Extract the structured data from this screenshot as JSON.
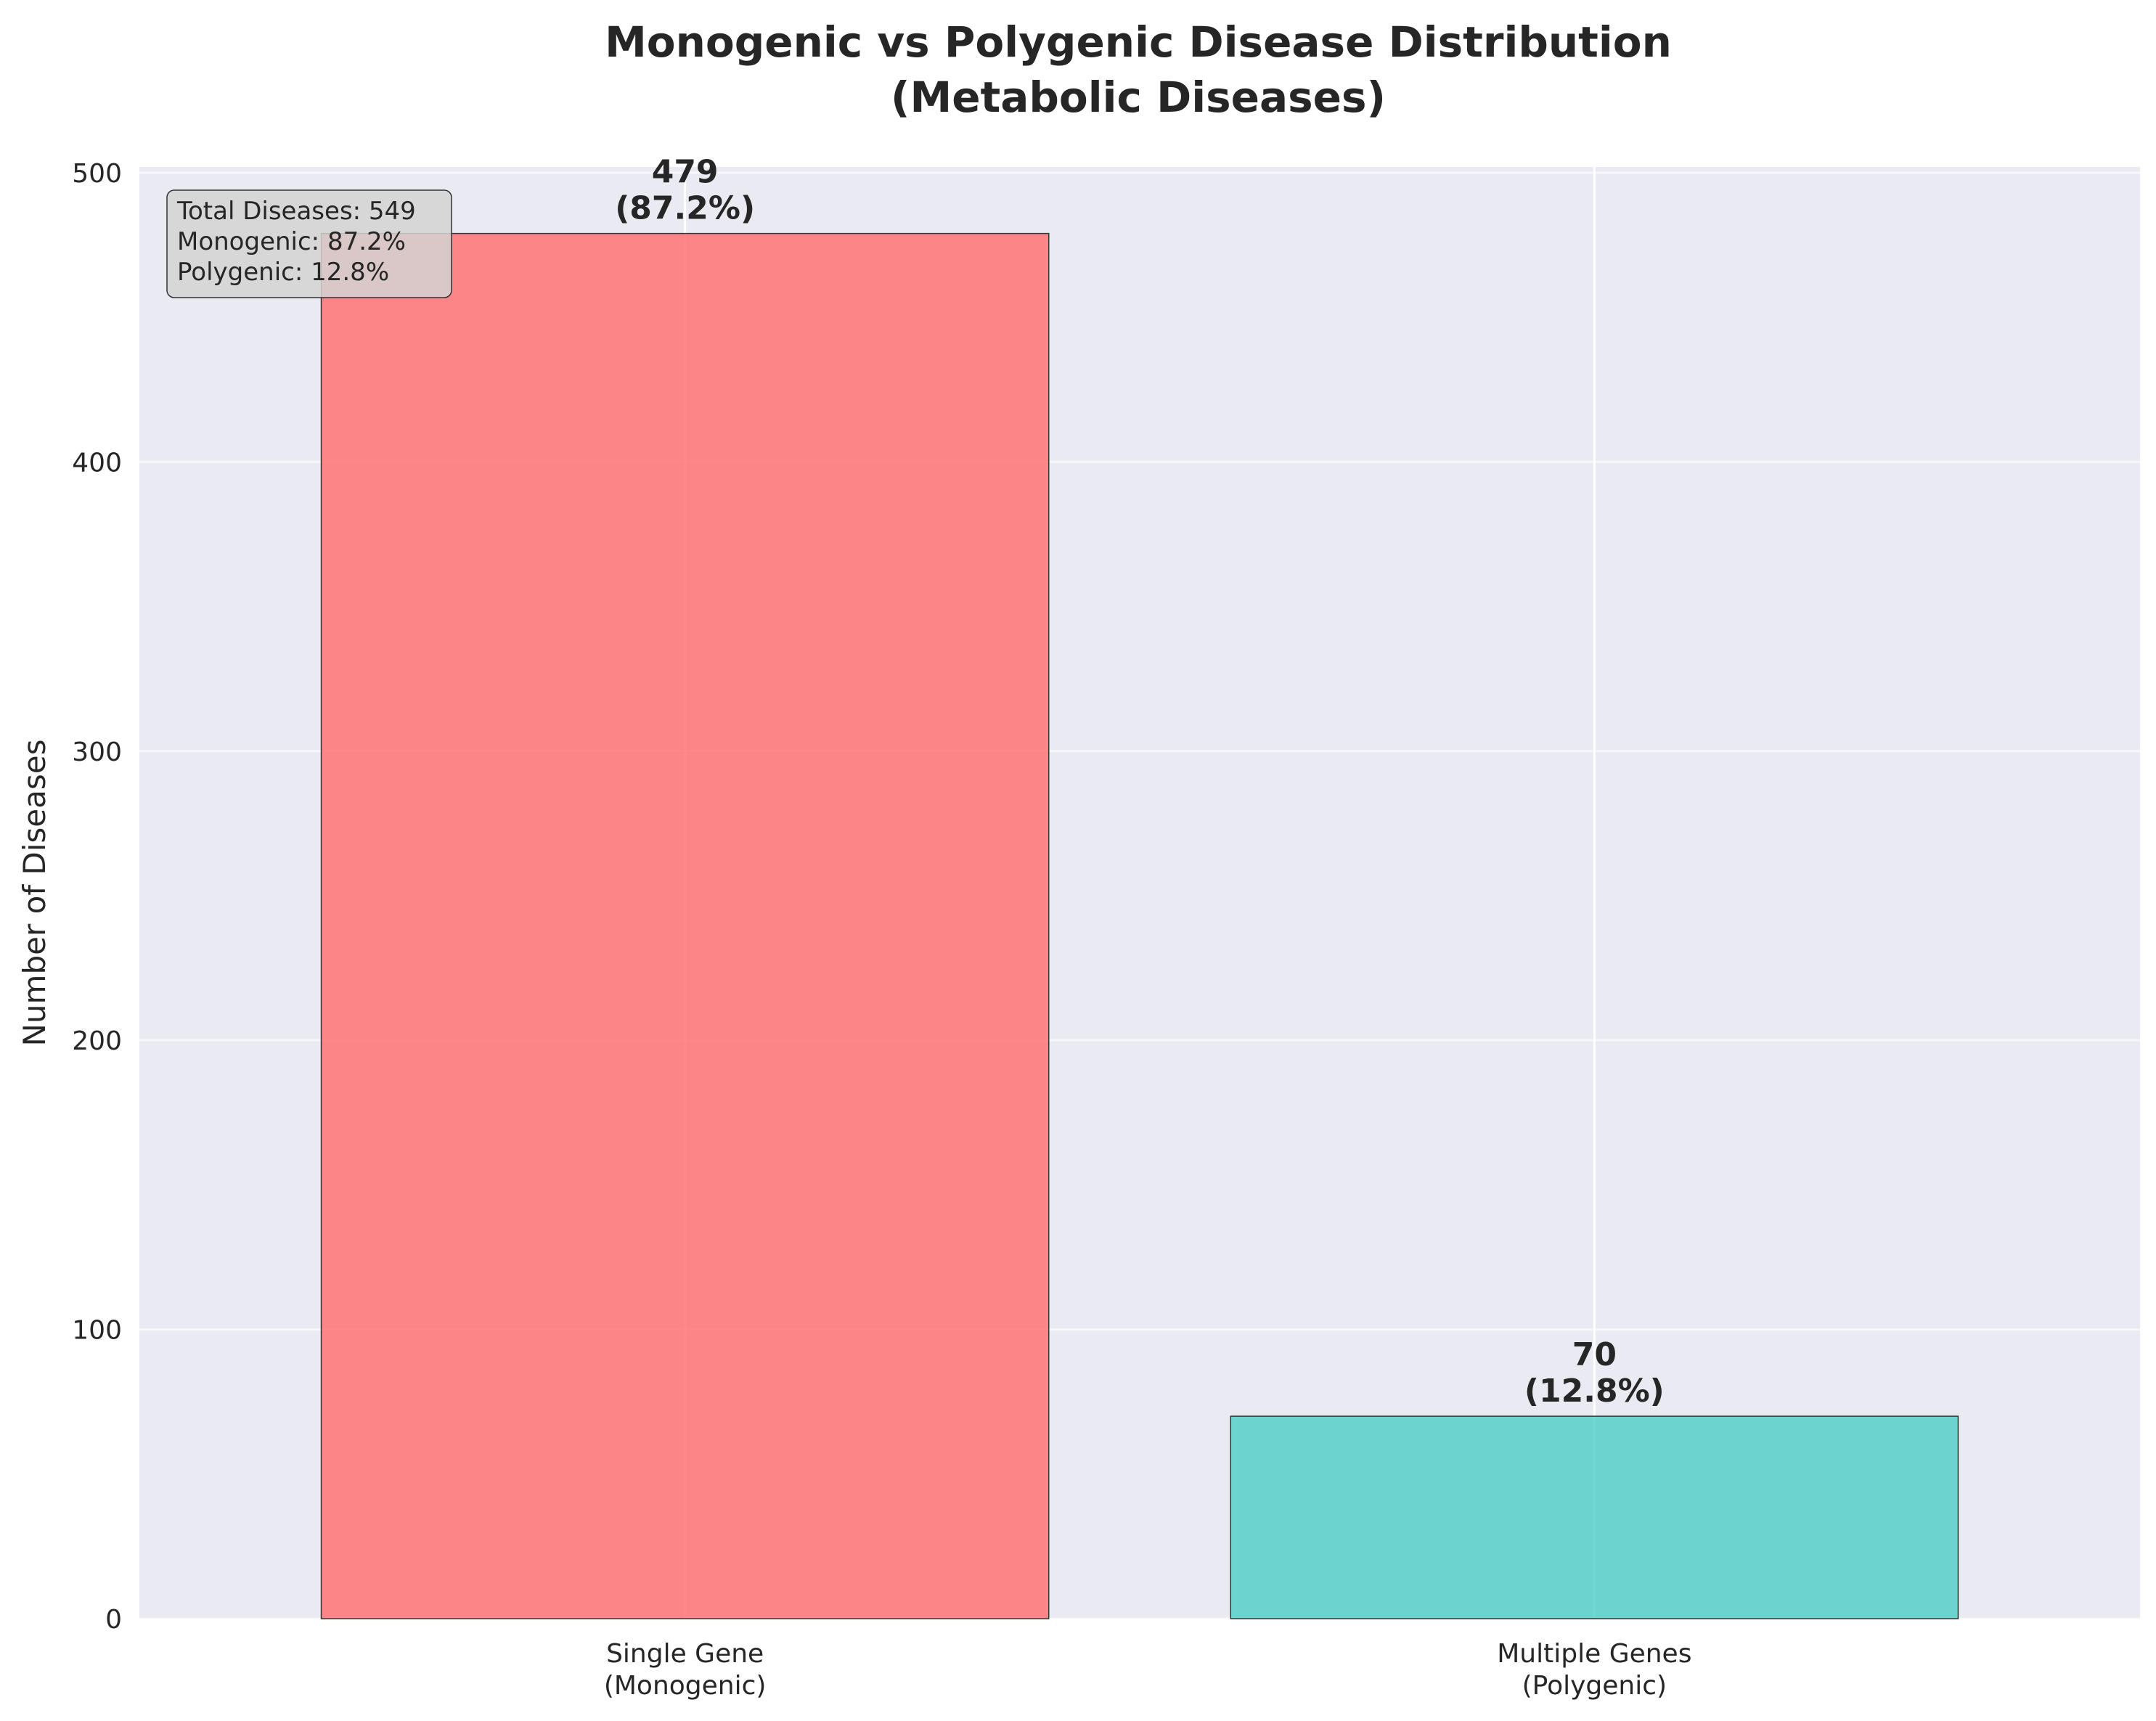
{
  "chart_data": {
    "type": "bar",
    "title": "Monogenic vs Polygenic Disease Distribution\n(Metabolic Diseases)",
    "xlabel": "",
    "ylabel": "Number of Diseases",
    "categories": [
      "Single Gene\n(Monogenic)",
      "Multiple Genes\n(Polygenic)"
    ],
    "values": [
      479,
      70
    ],
    "data_labels": [
      "479\n(87.2%)",
      "70\n(12.8%)"
    ],
    "colors": [
      "#FF6B6B",
      "#4ECDC4"
    ],
    "bar_opacity": 0.8,
    "ylim": [
      0,
      502
    ],
    "yticks": [
      0,
      100,
      200,
      300,
      400,
      500
    ],
    "grid": true,
    "background": "#EAEAF2",
    "annotation": {
      "lines": [
        "Total Diseases: 549",
        "Monogenic: 87.2%",
        "Polygenic: 12.8%"
      ],
      "placement": "top-left"
    }
  }
}
